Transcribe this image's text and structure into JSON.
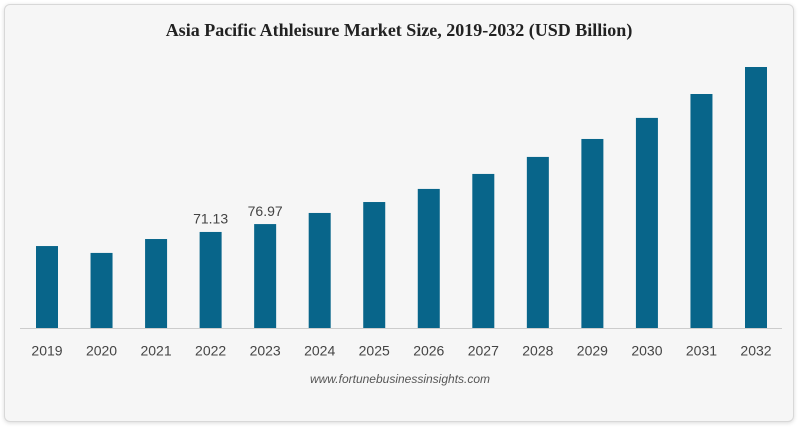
{
  "chart_data": {
    "type": "bar",
    "title": "Asia Pacific Athleisure Market Size, 2019-2032 (USD Billion)",
    "categories": [
      "2019",
      "2020",
      "2021",
      "2022",
      "2023",
      "2024",
      "2025",
      "2026",
      "2027",
      "2028",
      "2029",
      "2030",
      "2031",
      "2032"
    ],
    "values": [
      60.7,
      55.6,
      65.9,
      71.13,
      76.97,
      85.2,
      93.3,
      103.0,
      114.1,
      126.7,
      140.0,
      155.6,
      173.3,
      193.3
    ],
    "value_labels": [
      null,
      null,
      null,
      "71.13",
      "76.97",
      null,
      null,
      null,
      null,
      null,
      null,
      null,
      null,
      null
    ],
    "color": "#08658a",
    "source": "www.fortunebusinessinsights.com"
  }
}
